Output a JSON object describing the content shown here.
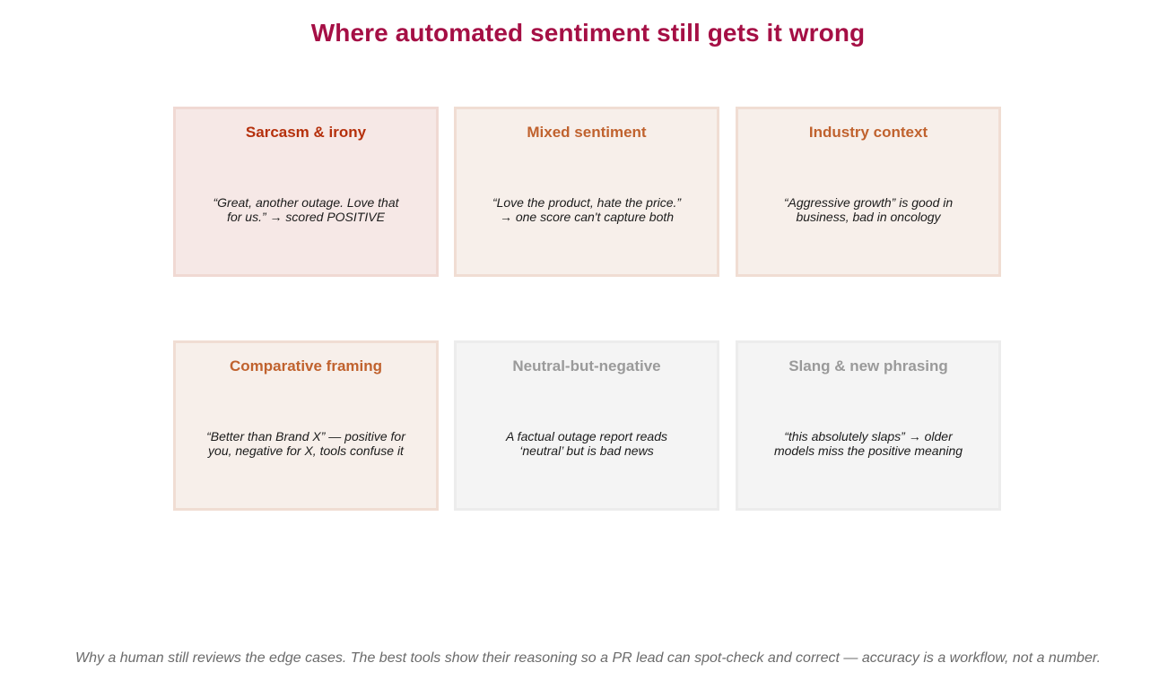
{
  "title": "Where automated sentiment still gets it wrong",
  "colors": {
    "title": "#a50f45",
    "heading_red": "#b5300c",
    "heading_orange": "#c0622e",
    "heading_gray": "#9a9a9a",
    "fill_pink": "#f6e8e6",
    "fill_peach": "#f7efea",
    "fill_gray": "#f4f4f4",
    "border_warm": "#efd9d2",
    "border_gray": "#ececec"
  },
  "cards": [
    {
      "heading": "Sarcasm & irony",
      "lines": [
        "“Great, another outage. Love that",
        "for us.” → scored POSITIVE"
      ],
      "heading_color": "#b5300c",
      "fill": "#f6e8e6",
      "border": "#f0d9d3"
    },
    {
      "heading": "Mixed sentiment",
      "lines": [
        "“Love the product, hate the price.”",
        "→ one score can't capture both"
      ],
      "heading_color": "#c0622e",
      "fill": "#f7efea",
      "border": "#f0ddd3"
    },
    {
      "heading": "Industry context",
      "lines": [
        "“Aggressive growth” is good in",
        "business, bad in oncology"
      ],
      "heading_color": "#c0622e",
      "fill": "#f7efea",
      "border": "#f0ddd3"
    },
    {
      "heading": "Comparative framing",
      "lines": [
        "“Better than Brand X” — positive for",
        "you, negative for X, tools confuse it"
      ],
      "heading_color": "#c0622e",
      "fill": "#f7efea",
      "border": "#f0ddd3"
    },
    {
      "heading": "Neutral-but-negative",
      "lines": [
        "A factual outage report reads",
        "‘neutral’ but is bad news"
      ],
      "heading_color": "#9a9a9a",
      "fill": "#f4f4f4",
      "border": "#ececec"
    },
    {
      "heading": "Slang & new phrasing",
      "lines": [
        "“this absolutely slaps” → older",
        "models miss the positive meaning"
      ],
      "heading_color": "#9a9a9a",
      "fill": "#f4f4f4",
      "border": "#ececec"
    }
  ],
  "footer": "Why a human still reviews the edge cases. The best tools show their reasoning so a PR lead can spot-check and correct — accuracy is a workflow, not a number."
}
